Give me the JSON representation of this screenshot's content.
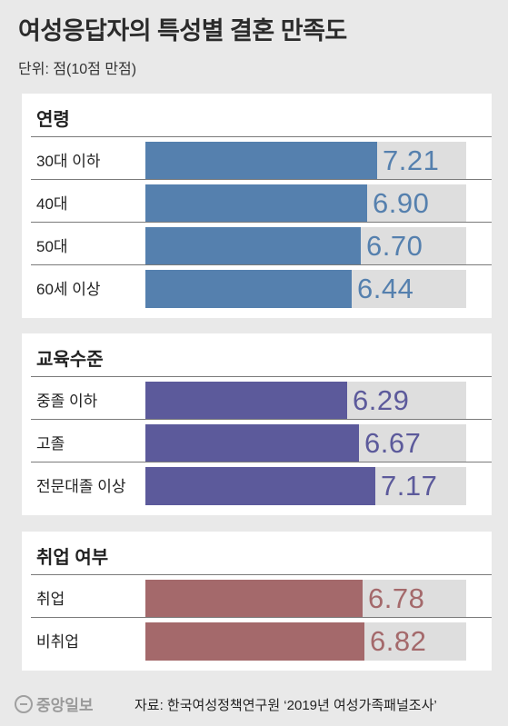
{
  "header": {
    "title": "여성응답자의 특성별 결혼 만족도",
    "unit": "단위: 점(10점 만점)"
  },
  "footer": {
    "logo_text": "중앙일보",
    "source": "자료: 한국여성정책연구원 ‘2019년 여성가족패널조사’"
  },
  "colors": {
    "age": "#5580ae",
    "education": "#5c5a9b",
    "employment": "#a4696b",
    "track": "#dedede"
  },
  "chart_data": [
    {
      "type": "bar",
      "title": "연령",
      "categories": [
        "30대 이하",
        "40대",
        "50대",
        "60세 이상"
      ],
      "values": [
        7.21,
        6.9,
        6.7,
        6.44
      ],
      "value_labels": [
        "7.21",
        "6.90",
        "6.70",
        "6.44"
      ],
      "xlim": [
        0,
        10
      ]
    },
    {
      "type": "bar",
      "title": "교육수준",
      "categories": [
        "중졸 이하",
        "고졸",
        "전문대졸 이상"
      ],
      "values": [
        6.29,
        6.67,
        7.17
      ],
      "value_labels": [
        "6.29",
        "6.67",
        "7.17"
      ],
      "xlim": [
        0,
        10
      ]
    },
    {
      "type": "bar",
      "title": "취업 여부",
      "categories": [
        "취업",
        "비취업"
      ],
      "values": [
        6.78,
        6.82
      ],
      "value_labels": [
        "6.78",
        "6.82"
      ],
      "xlim": [
        0,
        10
      ]
    }
  ]
}
